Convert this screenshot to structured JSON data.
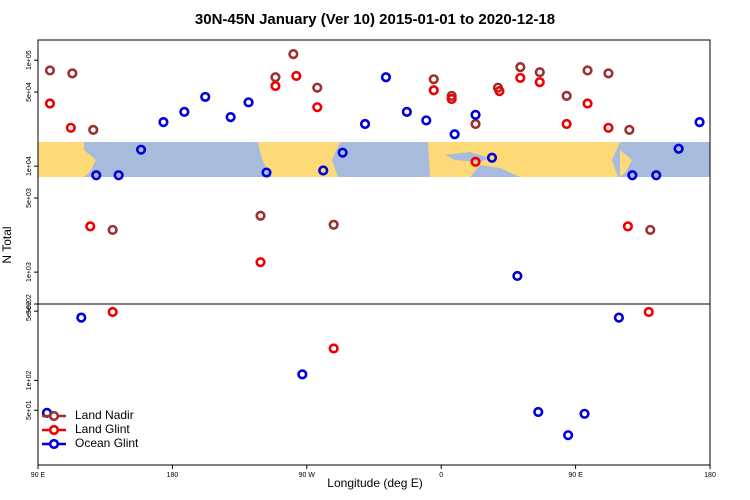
{
  "chart_data": {
    "type": "scatter",
    "title": "30N-45N January (Ver 10)   2015-01-01 to 2020-12-18",
    "x_label": "Longitude (deg E)",
    "y_label": "N Total",
    "log_y": true,
    "legend": "bottomleft",
    "xlim": [
      90,
      540
    ],
    "xticks": [
      {
        "value": 90,
        "label": "90 E"
      },
      180,
      {
        "value": 270,
        "label": "90 W"
      },
      {
        "value": 360,
        "label": "0"
      },
      {
        "value": 450,
        "label": "90 E"
      },
      {
        "value": 540,
        "label": "180"
      }
    ],
    "panels": [
      {
        "ylim": [
          500,
          155000
        ],
        "yticks": [
          {
            "value": 100000,
            "label": "1e+05"
          },
          {
            "value": 50000,
            "label": "5e+04"
          },
          {
            "value": 10000,
            "label": "1e+04"
          },
          {
            "value": 5000,
            "label": "5e+03"
          },
          {
            "value": 1000,
            "label": "1e+03"
          },
          {
            "value": 500,
            "label": "5e+02"
          }
        ]
      },
      {
        "ylim": [
          14,
          590
        ],
        "yticks": [
          {
            "value": 500,
            "label": "5e+02"
          },
          {
            "value": 100,
            "label": "1e+02"
          },
          {
            "value": 50,
            "label": "5e+01"
          }
        ]
      }
    ],
    "series": [
      {
        "name": "Land Nadir",
        "color": "#9e3030",
        "x": [
          98,
          113,
          127,
          140,
          239,
          249,
          261,
          277,
          288,
          355,
          367,
          383,
          398,
          413,
          426,
          444,
          458,
          472,
          486,
          500
        ],
        "values": [
          80000,
          75000,
          22000,
          2500,
          3400,
          69000,
          114000,
          55000,
          2800,
          66000,
          46000,
          25000,
          55000,
          86000,
          77000,
          46000,
          80000,
          75000,
          22000,
          2500
        ]
      },
      {
        "name": "Land Glint",
        "color": "#ee0000",
        "x": [
          98,
          112,
          125,
          140,
          239,
          249,
          263,
          277,
          288,
          355,
          367,
          383,
          399,
          413,
          426,
          444,
          458,
          472,
          485,
          499
        ],
        "values": [
          39000,
          23000,
          2700,
          490,
          1240,
          57000,
          71000,
          36000,
          210,
          52000,
          43000,
          11000,
          51000,
          68000,
          62000,
          25000,
          39000,
          23000,
          2700,
          490
        ]
      },
      {
        "name": "Ocean Glint",
        "color": "#0000dd",
        "x": [
          96,
          119,
          129,
          144,
          159,
          174,
          188,
          202,
          219,
          231,
          243,
          267,
          281,
          294,
          309,
          323,
          337,
          350,
          369,
          383,
          394,
          411,
          425,
          445,
          456,
          479,
          488,
          504,
          519,
          533
        ],
        "values": [
          47,
          430,
          8200,
          8200,
          14300,
          26000,
          32500,
          45000,
          29000,
          40000,
          8700,
          115,
          9100,
          13400,
          25000,
          69000,
          32500,
          27000,
          20000,
          30500,
          12000,
          920,
          48,
          28,
          46,
          430,
          8200,
          8200,
          14600,
          26000
        ]
      }
    ]
  }
}
